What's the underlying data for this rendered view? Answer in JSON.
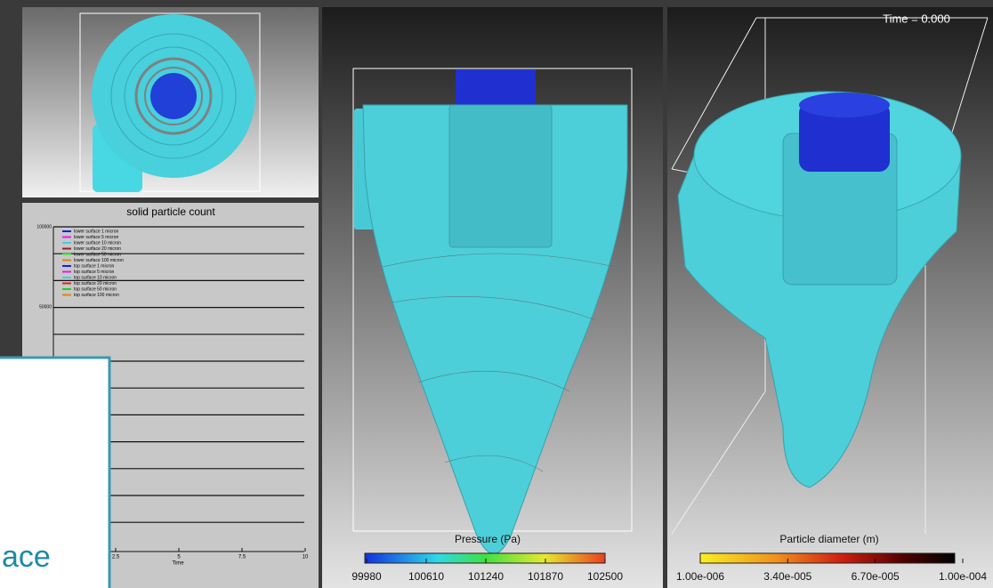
{
  "top_view": {},
  "particle_plot": {
    "title": "solid particle count",
    "y_tick_labels": [
      "100000",
      "50000"
    ],
    "legend": [
      {
        "name": "lower surface 1 micron",
        "color": "#1020e0"
      },
      {
        "name": "lower surface 5 micron",
        "color": "#e020e0"
      },
      {
        "name": "lower surface 10 micron",
        "color": "#40d0e0"
      },
      {
        "name": "lower surface 20 micron",
        "color": "#902020"
      },
      {
        "name": "lower surface 50 micron",
        "color": "#60e060"
      },
      {
        "name": "lower surface 100 micron",
        "color": "#e08020"
      },
      {
        "name": "top surface 1 micron",
        "color": "#1020e0"
      },
      {
        "name": "top surface 5 micron",
        "color": "#e020e0"
      },
      {
        "name": "top surface 10 micron",
        "color": "#40d0e0"
      },
      {
        "name": "top surface 20 micron",
        "color": "#e02020"
      },
      {
        "name": "top surface 50 micron",
        "color": "#20d020"
      },
      {
        "name": "top surface 100 micron",
        "color": "#e08020"
      }
    ],
    "x_tick_labels": [
      "2.5",
      "5",
      "7.5",
      "10"
    ],
    "x_label": "Time"
  },
  "overlay": {
    "text": "ace"
  },
  "pressure_view": {
    "colorbar_title": "Pressure (Pa)",
    "colorbar_tick_labels": [
      "99980",
      "100610",
      "101240",
      "101870",
      "102500"
    ]
  },
  "particle_view": {
    "time_label": "Time = 0.000",
    "colorbar_title": "Particle diameter (m)",
    "colorbar_tick_labels": [
      "1.00e-006",
      "3.40e-005",
      "6.70e-005",
      "1.00e-004"
    ]
  }
}
